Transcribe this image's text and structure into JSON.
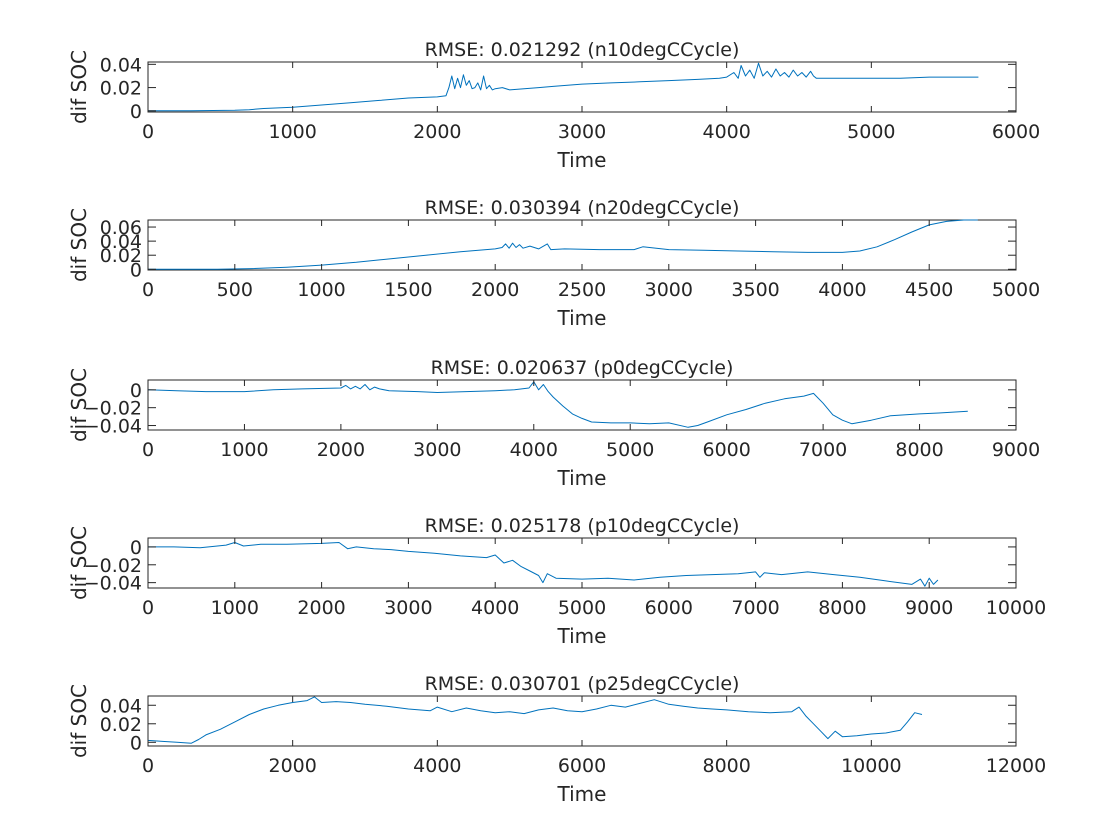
{
  "figure": {
    "line_color": "#0072BD",
    "axis_color": "#262626",
    "background": "#ffffff"
  },
  "chart_data": [
    {
      "type": "line",
      "title": "RMSE: 0.021292 (n10degCCycle)",
      "xlabel": "Time",
      "ylabel": "dif SOC",
      "xlim": [
        0,
        6000
      ],
      "ylim": [
        -0.001,
        0.042
      ],
      "xticks": [
        0,
        1000,
        2000,
        3000,
        4000,
        5000,
        6000
      ],
      "xtick_labels": [
        "0",
        "1000",
        "2000",
        "3000",
        "4000",
        "5000",
        "6000"
      ],
      "yticks": [
        0,
        0.02,
        0.04
      ],
      "ytick_labels": [
        "0",
        "0.02",
        "0.04"
      ],
      "grid": false,
      "series": [
        {
          "x": [
            0,
            300,
            600,
            700,
            800,
            1000,
            1200,
            1400,
            1600,
            1800,
            2000,
            2060,
            2080,
            2100,
            2120,
            2140,
            2160,
            2180,
            2200,
            2220,
            2240,
            2260,
            2280,
            2300,
            2320,
            2340,
            2360,
            2380,
            2400,
            2450,
            2500,
            2600,
            2700,
            2800,
            2900,
            3000,
            3200,
            3400,
            3600,
            3800,
            3950,
            4000,
            4050,
            4080,
            4100,
            4130,
            4160,
            4190,
            4220,
            4250,
            4280,
            4310,
            4340,
            4370,
            4400,
            4430,
            4460,
            4490,
            4520,
            4550,
            4580,
            4600,
            4620,
            4700,
            4800,
            5000,
            5200,
            5400,
            5600,
            5740
          ],
          "y": [
            0,
            0,
            0.0005,
            0.001,
            0.002,
            0.003,
            0.005,
            0.007,
            0.009,
            0.011,
            0.012,
            0.013,
            0.02,
            0.03,
            0.019,
            0.028,
            0.02,
            0.031,
            0.022,
            0.026,
            0.019,
            0.02,
            0.024,
            0.018,
            0.03,
            0.019,
            0.022,
            0.018,
            0.019,
            0.02,
            0.018,
            0.019,
            0.02,
            0.021,
            0.022,
            0.023,
            0.024,
            0.025,
            0.026,
            0.027,
            0.028,
            0.029,
            0.033,
            0.028,
            0.039,
            0.03,
            0.035,
            0.028,
            0.041,
            0.03,
            0.034,
            0.029,
            0.036,
            0.03,
            0.033,
            0.029,
            0.035,
            0.03,
            0.033,
            0.029,
            0.034,
            0.03,
            0.028,
            0.028,
            0.028,
            0.028,
            0.028,
            0.029,
            0.029,
            0.029
          ]
        }
      ]
    },
    {
      "type": "line",
      "title": "RMSE: 0.030394 (n20degCCycle)",
      "xlabel": "Time",
      "ylabel": "dif SOC",
      "xlim": [
        0,
        5000
      ],
      "ylim": [
        -0.001,
        0.07
      ],
      "xticks": [
        0,
        500,
        1000,
        1500,
        2000,
        2500,
        3000,
        3500,
        4000,
        4500,
        5000
      ],
      "xtick_labels": [
        "0",
        "500",
        "1000",
        "1500",
        "2000",
        "2500",
        "3000",
        "3500",
        "4000",
        "4500",
        "5000"
      ],
      "yticks": [
        0,
        0.02,
        0.04,
        0.06
      ],
      "ytick_labels": [
        "0",
        "0.02",
        "0.04",
        "0.06"
      ],
      "grid": false,
      "series": [
        {
          "x": [
            0,
            200,
            400,
            600,
            800,
            1000,
            1200,
            1400,
            1600,
            1800,
            2000,
            2040,
            2060,
            2080,
            2100,
            2120,
            2140,
            2160,
            2200,
            2250,
            2300,
            2320,
            2400,
            2600,
            2800,
            2850,
            3000,
            3200,
            3400,
            3600,
            3800,
            4000,
            4100,
            4200,
            4300,
            4400,
            4500,
            4600,
            4700,
            4780
          ],
          "y": [
            0,
            0,
            0,
            0.001,
            0.003,
            0.006,
            0.01,
            0.015,
            0.02,
            0.025,
            0.029,
            0.031,
            0.036,
            0.03,
            0.037,
            0.031,
            0.035,
            0.03,
            0.033,
            0.029,
            0.036,
            0.028,
            0.029,
            0.028,
            0.028,
            0.032,
            0.028,
            0.027,
            0.026,
            0.025,
            0.024,
            0.024,
            0.026,
            0.032,
            0.042,
            0.053,
            0.063,
            0.068,
            0.07,
            0.07
          ]
        }
      ]
    },
    {
      "type": "line",
      "title": "RMSE: 0.020637 (p0degCCycle)",
      "xlabel": "Time",
      "ylabel": "dif SOC",
      "xlim": [
        0,
        9000
      ],
      "ylim": [
        -0.045,
        0.011
      ],
      "xticks": [
        0,
        1000,
        2000,
        3000,
        4000,
        5000,
        6000,
        7000,
        8000,
        9000
      ],
      "xtick_labels": [
        "0",
        "1000",
        "2000",
        "3000",
        "4000",
        "5000",
        "6000",
        "7000",
        "8000",
        "9000"
      ],
      "yticks": [
        -0.04,
        -0.02,
        0
      ],
      "ytick_labels": [
        "−0.04",
        "−0.02",
        "0"
      ],
      "grid": false,
      "series": [
        {
          "x": [
            0,
            300,
            600,
            1000,
            1300,
            1600,
            2000,
            2050,
            2100,
            2150,
            2200,
            2250,
            2300,
            2350,
            2400,
            2500,
            2800,
            3000,
            3300,
            3600,
            3800,
            3950,
            4000,
            4050,
            4100,
            4150,
            4200,
            4300,
            4400,
            4500,
            4600,
            4800,
            5000,
            5200,
            5400,
            5600,
            5700,
            5800,
            6000,
            6200,
            6400,
            6600,
            6800,
            6900,
            7000,
            7100,
            7200,
            7300,
            7500,
            7700,
            8000,
            8200,
            8500
          ],
          "y": [
            0,
            -0.001,
            -0.002,
            -0.002,
            0,
            0.001,
            0.002,
            0.005,
            0.001,
            0.004,
            0.001,
            0.006,
            0,
            0.003,
            0.001,
            -0.001,
            -0.002,
            -0.003,
            -0.002,
            -0.001,
            0,
            0.002,
            0.009,
            0,
            0.006,
            -0.002,
            -0.008,
            -0.018,
            -0.027,
            -0.032,
            -0.036,
            -0.037,
            -0.037,
            -0.038,
            -0.037,
            -0.042,
            -0.04,
            -0.036,
            -0.028,
            -0.022,
            -0.015,
            -0.01,
            -0.007,
            -0.004,
            -0.015,
            -0.028,
            -0.034,
            -0.038,
            -0.034,
            -0.029,
            -0.027,
            -0.026,
            -0.024
          ]
        }
      ]
    },
    {
      "type": "line",
      "title": "RMSE: 0.025178 (p10degCCycle)",
      "xlabel": "Time",
      "ylabel": "dif SOC",
      "xlim": [
        0,
        10000
      ],
      "ylim": [
        -0.046,
        0.01
      ],
      "xticks": [
        0,
        1000,
        2000,
        3000,
        4000,
        5000,
        6000,
        7000,
        8000,
        9000,
        10000
      ],
      "xtick_labels": [
        "0",
        "1000",
        "2000",
        "3000",
        "4000",
        "5000",
        "6000",
        "7000",
        "8000",
        "9000",
        "10000"
      ],
      "yticks": [
        -0.04,
        -0.02,
        0
      ],
      "ytick_labels": [
        "−0.04",
        "−0.02",
        "0"
      ],
      "grid": false,
      "series": [
        {
          "x": [
            0,
            300,
            600,
            900,
            1000,
            1100,
            1300,
            1600,
            2000,
            2200,
            2300,
            2400,
            2600,
            2800,
            3000,
            3300,
            3600,
            3900,
            4000,
            4100,
            4200,
            4300,
            4400,
            4500,
            4550,
            4600,
            4700,
            5000,
            5300,
            5600,
            5900,
            6200,
            6500,
            6800,
            7000,
            7050,
            7100,
            7300,
            7600,
            7900,
            8200,
            8500,
            8800,
            8900,
            8950,
            9000,
            9050,
            9100
          ],
          "y": [
            0,
            0,
            -0.001,
            0.002,
            0.005,
            0.001,
            0.003,
            0.003,
            0.004,
            0.005,
            -0.002,
            0,
            -0.002,
            -0.003,
            -0.005,
            -0.007,
            -0.01,
            -0.012,
            -0.009,
            -0.018,
            -0.015,
            -0.022,
            -0.027,
            -0.032,
            -0.04,
            -0.03,
            -0.035,
            -0.036,
            -0.035,
            -0.037,
            -0.034,
            -0.032,
            -0.031,
            -0.03,
            -0.028,
            -0.034,
            -0.029,
            -0.031,
            -0.028,
            -0.031,
            -0.034,
            -0.038,
            -0.042,
            -0.036,
            -0.044,
            -0.035,
            -0.042,
            -0.037
          ]
        }
      ]
    },
    {
      "type": "line",
      "title": "RMSE: 0.030701 (p25degCCycle)",
      "xlabel": "Time",
      "ylabel": "dif SOC",
      "xlim": [
        0,
        12000
      ],
      "ylim": [
        -0.004,
        0.05
      ],
      "xticks": [
        0,
        2000,
        4000,
        6000,
        8000,
        10000,
        12000
      ],
      "xtick_labels": [
        "0",
        "2000",
        "4000",
        "6000",
        "8000",
        "10000",
        "12000"
      ],
      "yticks": [
        0,
        0.02,
        0.04
      ],
      "ytick_labels": [
        "0",
        "0.02",
        "0.04"
      ],
      "grid": false,
      "series": [
        {
          "x": [
            0,
            200,
            400,
            600,
            700,
            800,
            1000,
            1200,
            1400,
            1600,
            1800,
            2000,
            2200,
            2300,
            2400,
            2600,
            2800,
            3000,
            3300,
            3600,
            3900,
            4000,
            4200,
            4400,
            4600,
            4800,
            5000,
            5200,
            5400,
            5600,
            5800,
            6000,
            6200,
            6400,
            6600,
            6800,
            7000,
            7200,
            7400,
            7600,
            7800,
            8000,
            8300,
            8600,
            8900,
            9000,
            9100,
            9200,
            9300,
            9400,
            9500,
            9600,
            9800,
            10000,
            10200,
            10400,
            10500,
            10600,
            10700
          ],
          "y": [
            0.002,
            0.001,
            0,
            -0.001,
            0.003,
            0.008,
            0.014,
            0.022,
            0.03,
            0.036,
            0.04,
            0.043,
            0.045,
            0.049,
            0.043,
            0.044,
            0.043,
            0.041,
            0.039,
            0.036,
            0.034,
            0.038,
            0.033,
            0.037,
            0.034,
            0.032,
            0.033,
            0.031,
            0.035,
            0.037,
            0.034,
            0.033,
            0.036,
            0.04,
            0.038,
            0.042,
            0.046,
            0.041,
            0.039,
            0.037,
            0.036,
            0.035,
            0.033,
            0.032,
            0.033,
            0.038,
            0.028,
            0.02,
            0.012,
            0.004,
            0.012,
            0.006,
            0.007,
            0.009,
            0.01,
            0.013,
            0.022,
            0.032,
            0.03
          ]
        }
      ]
    }
  ]
}
